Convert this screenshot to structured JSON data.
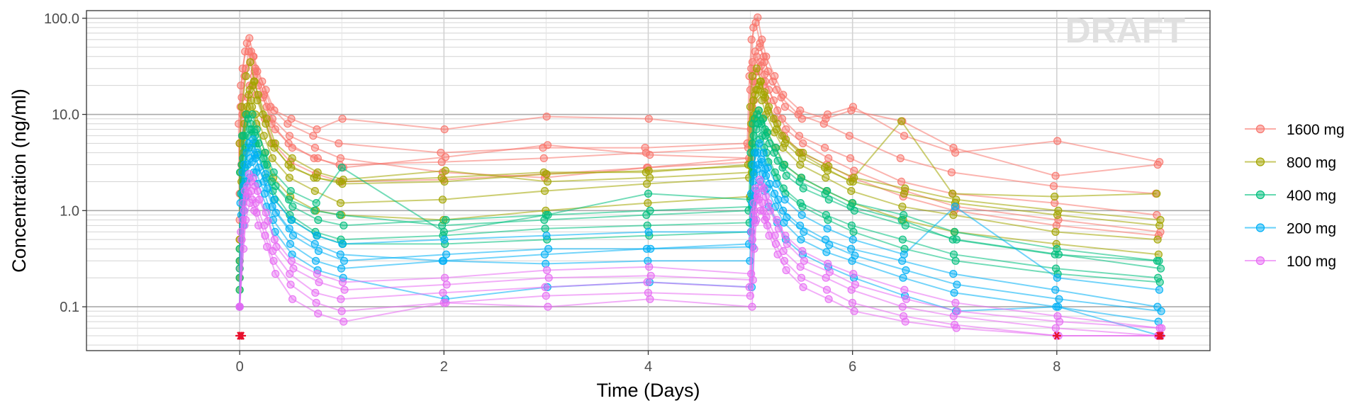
{
  "chart_data": {
    "type": "line",
    "xlabel": "Time (Days)",
    "ylabel": "Concentration (ng/ml)",
    "watermark": "DRAFT",
    "y_scale": "log10",
    "xlim": [
      -1.5,
      9.5
    ],
    "ylim": [
      0.035,
      120
    ],
    "x_ticks": [
      0,
      2,
      4,
      6,
      8
    ],
    "x_tick_labels": [
      "0",
      "2",
      "4",
      "6",
      "8"
    ],
    "y_ticks": [
      0.1,
      1,
      10,
      100
    ],
    "y_tick_labels": [
      "0.1",
      "1.0",
      "10.0",
      "100.0"
    ],
    "grid": true,
    "legend_position": "right",
    "nominal_times": [
      0,
      0.0208,
      0.0417,
      0.0833,
      0.125,
      0.1667,
      0.25,
      0.3333,
      0.5,
      0.75,
      1,
      2,
      3,
      4,
      5,
      5.0208,
      5.0417,
      5.0833,
      5.125,
      5.1667,
      5.25,
      5.3333,
      5.5,
      5.75,
      6,
      6.5,
      7,
      8,
      9
    ],
    "series": [
      {
        "name": "1600 mg",
        "color": "#F8766D",
        "subjects": [
          [
            0.5,
            8,
            20,
            45,
            62,
            40,
            22,
            12,
            8,
            6,
            5,
            4,
            4.5,
            4.5,
            5,
            25,
            60,
            90,
            55,
            35,
            22,
            15,
            10,
            8,
            6,
            3.5,
            2.5,
            1.8,
            1.5
          ],
          [
            0.3,
            5,
            15,
            30,
            35,
            28,
            15,
            8,
            5,
            3.5,
            3,
            3.2,
            3.5,
            4,
            4.5,
            18,
            35,
            40,
            32,
            22,
            14,
            9,
            6,
            4.5,
            3.5,
            2,
            1.5,
            1.2,
            0.9
          ],
          [
            1.5,
            12,
            30,
            55,
            45,
            30,
            16,
            9,
            6,
            4.5,
            3.5,
            2.5,
            2.2,
            2.8,
            3.5,
            30,
            80,
            102,
            60,
            40,
            25,
            16,
            11,
            9,
            11,
            8.5,
            4.5,
            2.3,
            3.0
          ],
          [
            0.2,
            3,
            8,
            15,
            20,
            16,
            9,
            5,
            3.2,
            2.4,
            2,
            2.1,
            2.4,
            2.8,
            3.2,
            12,
            22,
            28,
            20,
            14,
            9,
            6,
            4,
            3,
            2.2,
            1.4,
            1.0,
            0.7,
            0.55
          ],
          [
            0.8,
            10,
            25,
            45,
            40,
            28,
            18,
            11,
            9,
            7,
            9,
            7,
            9.5,
            9,
            7,
            22,
            45,
            50,
            40,
            28,
            18,
            12,
            9,
            10,
            12,
            6,
            4,
            5.3,
            3.2
          ],
          [
            0.25,
            4,
            10,
            20,
            25,
            20,
            12,
            7,
            4.5,
            3.5,
            2.8,
            3.6,
            4.8,
            3.8,
            3.5,
            14,
            28,
            35,
            26,
            18,
            11,
            7,
            5,
            3.5,
            2.6,
            1.6,
            1.1,
            0.8,
            0.6
          ]
        ]
      },
      {
        "name": "800 mg",
        "color": "#A3A500",
        "subjects": [
          [
            0.4,
            5,
            12,
            25,
            35,
            22,
            10,
            5,
            3,
            2.2,
            2,
            2.2,
            2.5,
            2.5,
            3,
            12,
            25,
            30,
            22,
            15,
            9,
            6,
            4,
            2.8,
            2,
            8.5,
            1.5,
            1.4,
            1.5
          ],
          [
            0.2,
            2.5,
            6,
            12,
            14,
            10,
            6,
            3.5,
            2.2,
            1.6,
            1.2,
            1.3,
            1.6,
            1.9,
            2.2,
            8,
            14,
            18,
            14,
            10,
            6.5,
            4.5,
            3,
            2.2,
            1.6,
            1.1,
            0.9,
            0.6,
            0.5
          ],
          [
            0.15,
            2,
            5,
            10,
            12,
            8,
            4,
            2.2,
            1.4,
            1,
            0.9,
            0.8,
            1.0,
            1.2,
            1.4,
            5,
            9,
            11,
            9,
            6.5,
            4.5,
            3,
            2.2,
            1.6,
            1.2,
            0.8,
            0.6,
            0.45,
            0.35
          ],
          [
            0.3,
            3,
            8,
            16,
            20,
            14,
            8,
            4.5,
            2.8,
            2.2,
            1.9,
            2.0,
            2.4,
            2.6,
            2.9,
            9,
            16,
            20,
            16,
            11,
            7,
            5,
            3.5,
            2.6,
            2.0,
            1.5,
            1.2,
            0.9,
            0.7
          ],
          [
            0.5,
            4,
            10,
            18,
            22,
            16,
            9,
            5,
            3.5,
            2.5,
            2.1,
            2.6,
            2.0,
            2.2,
            2.5,
            10,
            18,
            22,
            17,
            12,
            8,
            5.5,
            4,
            2.9,
            2.2,
            1.7,
            1.3,
            1.0,
            0.8
          ]
        ]
      },
      {
        "name": "400 mg",
        "color": "#00BF7D",
        "subjects": [
          [
            0.3,
            2.5,
            6,
            10,
            8,
            6,
            3.5,
            2,
            1.3,
            1,
            0.9,
            0.7,
            0.8,
            0.9,
            1.0,
            4,
            8,
            10,
            8,
            6,
            4,
            2.8,
            2,
            1.5,
            1.1,
            0.8,
            0.5,
            0.35,
            0.3
          ],
          [
            0.2,
            1.5,
            3.5,
            6,
            7,
            5,
            3,
            1.6,
            0.9,
            0.6,
            0.5,
            0.55,
            0.65,
            0.7,
            0.75,
            3,
            6,
            8,
            6,
            4,
            2.5,
            1.7,
            1.2,
            0.9,
            0.7,
            0.5,
            0.35,
            0.25,
            0.2
          ],
          [
            0.4,
            3,
            6,
            9,
            10,
            7,
            4,
            2.5,
            1.6,
            1.2,
            2.8,
            0.6,
            0.9,
            1.5,
            1.3,
            5,
            9,
            11,
            9,
            6.5,
            4.5,
            3,
            2.2,
            1.6,
            1.2,
            0.9,
            0.6,
            0.4,
            0.3
          ],
          [
            0.15,
            1.2,
            2.8,
            4.5,
            5,
            3.8,
            2.2,
            1.3,
            0.8,
            0.55,
            0.45,
            0.45,
            0.5,
            0.55,
            0.6,
            2.5,
            4.5,
            5.5,
            4.5,
            3.2,
            2.2,
            1.5,
            1.1,
            0.8,
            0.6,
            0.4,
            0.3,
            0.22,
            0.18
          ],
          [
            0.25,
            2,
            4.5,
            7,
            6.5,
            5,
            3,
            1.8,
            1.1,
            0.8,
            0.7,
            0.8,
            0.9,
            1.0,
            1.1,
            4,
            7,
            8.5,
            7,
            5,
            3.3,
            2.3,
            1.7,
            1.3,
            1.0,
            0.7,
            0.5,
            0.35,
            0.25
          ]
        ]
      },
      {
        "name": "200 mg",
        "color": "#00B0F6",
        "subjects": [
          [
            0.1,
            1.2,
            2.5,
            4,
            4.5,
            3.5,
            2,
            1.1,
            0.65,
            0.45,
            0.35,
            0.3,
            0.35,
            0.4,
            0.45,
            1.5,
            3,
            4,
            3.2,
            2.3,
            1.5,
            1,
            0.7,
            0.5,
            0.4,
            0.3,
            0.22,
            0.15,
            0.1
          ],
          [
            0.1,
            0.9,
            1.8,
            3,
            3.2,
            2.5,
            1.5,
            0.8,
            0.45,
            0.3,
            0.25,
            0.3,
            0.28,
            0.3,
            0.3,
            1.2,
            2.4,
            3.0,
            2.4,
            1.7,
            1.1,
            0.75,
            0.5,
            0.37,
            0.3,
            0.2,
            0.14,
            0.1,
            0.07
          ],
          [
            0.1,
            1.5,
            3,
            5,
            5.5,
            4,
            2.4,
            1.3,
            0.8,
            0.55,
            0.45,
            0.5,
            0.55,
            0.6,
            0.6,
            2,
            4,
            5,
            4,
            2.8,
            1.9,
            1.3,
            0.9,
            0.65,
            0.5,
            0.35,
            1.1,
            0.2,
            0.15
          ],
          [
            0.1,
            0.7,
            1.4,
            2.2,
            2.5,
            1.9,
            1.1,
            0.6,
            0.35,
            0.24,
            0.2,
            0.12,
            0.16,
            0.18,
            0.16,
            0.8,
            1.6,
            2.0,
            1.6,
            1.1,
            0.75,
            0.5,
            0.35,
            0.26,
            0.2,
            0.13,
            0.09,
            0.1,
            0.05
          ],
          [
            0.1,
            1.0,
            2.0,
            3.5,
            3.8,
            2.8,
            1.7,
            0.95,
            0.55,
            0.38,
            0.3,
            0.35,
            0.4,
            0.4,
            0.42,
            1.4,
            2.7,
            3.4,
            2.7,
            1.9,
            1.3,
            0.85,
            0.6,
            0.44,
            0.34,
            0.24,
            0.17,
            0.12,
            0.09
          ]
        ]
      },
      {
        "name": "100 mg",
        "color": "#E76BF3",
        "subjects": [
          [
            0.1,
            0.6,
            1.2,
            1.8,
            1.6,
            1.2,
            0.7,
            0.38,
            0.22,
            0.14,
            0.12,
            0.14,
            0.16,
            0.18,
            0.16,
            0.6,
            1.2,
            1.5,
            1.2,
            0.85,
            0.55,
            0.38,
            0.26,
            0.2,
            0.15,
            0.1,
            0.08,
            0.06,
            0.05
          ],
          [
            0.1,
            0.5,
            1.0,
            1.5,
            1.3,
            0.95,
            0.55,
            0.3,
            0.17,
            0.11,
            0.09,
            0.11,
            0.13,
            0.14,
            0.13,
            0.5,
            1.0,
            1.3,
            1.0,
            0.7,
            0.45,
            0.3,
            0.2,
            0.15,
            0.11,
            0.08,
            0.065,
            0.05,
            0.05
          ],
          [
            0.1,
            0.8,
            1.6,
            2.4,
            2.2,
            1.6,
            0.95,
            0.5,
            0.3,
            0.22,
            0.18,
            0.2,
            0.24,
            0.26,
            0.22,
            0.9,
            1.7,
            2.1,
            1.7,
            1.2,
            0.8,
            0.55,
            0.38,
            0.28,
            0.22,
            0.15,
            0.11,
            0.08,
            0.06
          ],
          [
            0.1,
            0.4,
            0.8,
            1.2,
            1.0,
            0.7,
            0.42,
            0.22,
            0.12,
            0.085,
            0.07,
            0.11,
            0.1,
            0.12,
            0.1,
            0.4,
            0.8,
            1.0,
            0.8,
            0.55,
            0.35,
            0.24,
            0.16,
            0.12,
            0.09,
            0.07,
            0.06,
            0.05,
            0.05
          ],
          [
            0.1,
            0.7,
            1.4,
            2.0,
            1.8,
            1.3,
            0.78,
            0.42,
            0.25,
            0.18,
            0.15,
            0.17,
            0.2,
            0.21,
            0.19,
            0.75,
            1.4,
            1.8,
            1.4,
            1.0,
            0.65,
            0.45,
            0.3,
            0.23,
            0.17,
            0.12,
            0.09,
            0.07,
            0.06
          ]
        ]
      }
    ],
    "blq_markers": {
      "color": "#E8112D",
      "value": 0.05,
      "x": [
        0,
        0,
        0,
        8,
        9,
        9,
        9
      ]
    }
  }
}
